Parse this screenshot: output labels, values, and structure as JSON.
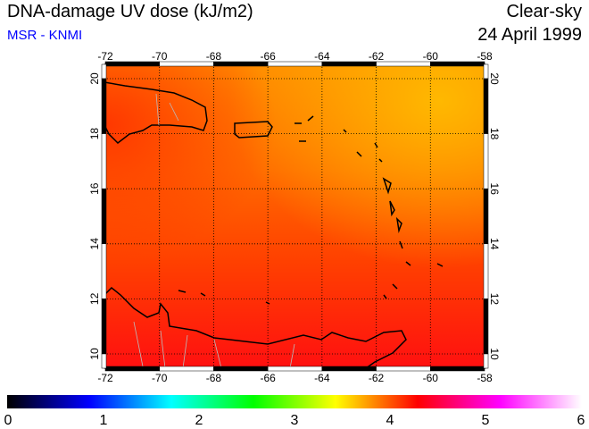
{
  "header": {
    "title": "DNA-damage UV dose (kJ/m2)",
    "source": "MSR - KNMI",
    "condition": "Clear-sky",
    "date": "24 April 1999"
  },
  "map": {
    "lon_ticks": [
      -72,
      -70,
      -68,
      -66,
      -64,
      -62,
      -60,
      -58
    ],
    "lat_ticks": [
      20,
      18,
      16,
      14,
      12,
      10
    ],
    "lon_range": [
      -72,
      -58
    ],
    "lat_range": [
      9.5,
      20.5
    ],
    "field_top_color": "#ff9000",
    "field_topright_color": "#ffb000",
    "field_bottom_color": "#ff1a10"
  },
  "colorbar": {
    "ticks": [
      0,
      1,
      2,
      3,
      4,
      5,
      6
    ],
    "range": [
      0,
      6
    ],
    "stops": [
      "#000000",
      "#0000ff",
      "#00ffff",
      "#00ff00",
      "#ffff00",
      "#ff0000",
      "#ff00ff",
      "#ffffff"
    ]
  }
}
